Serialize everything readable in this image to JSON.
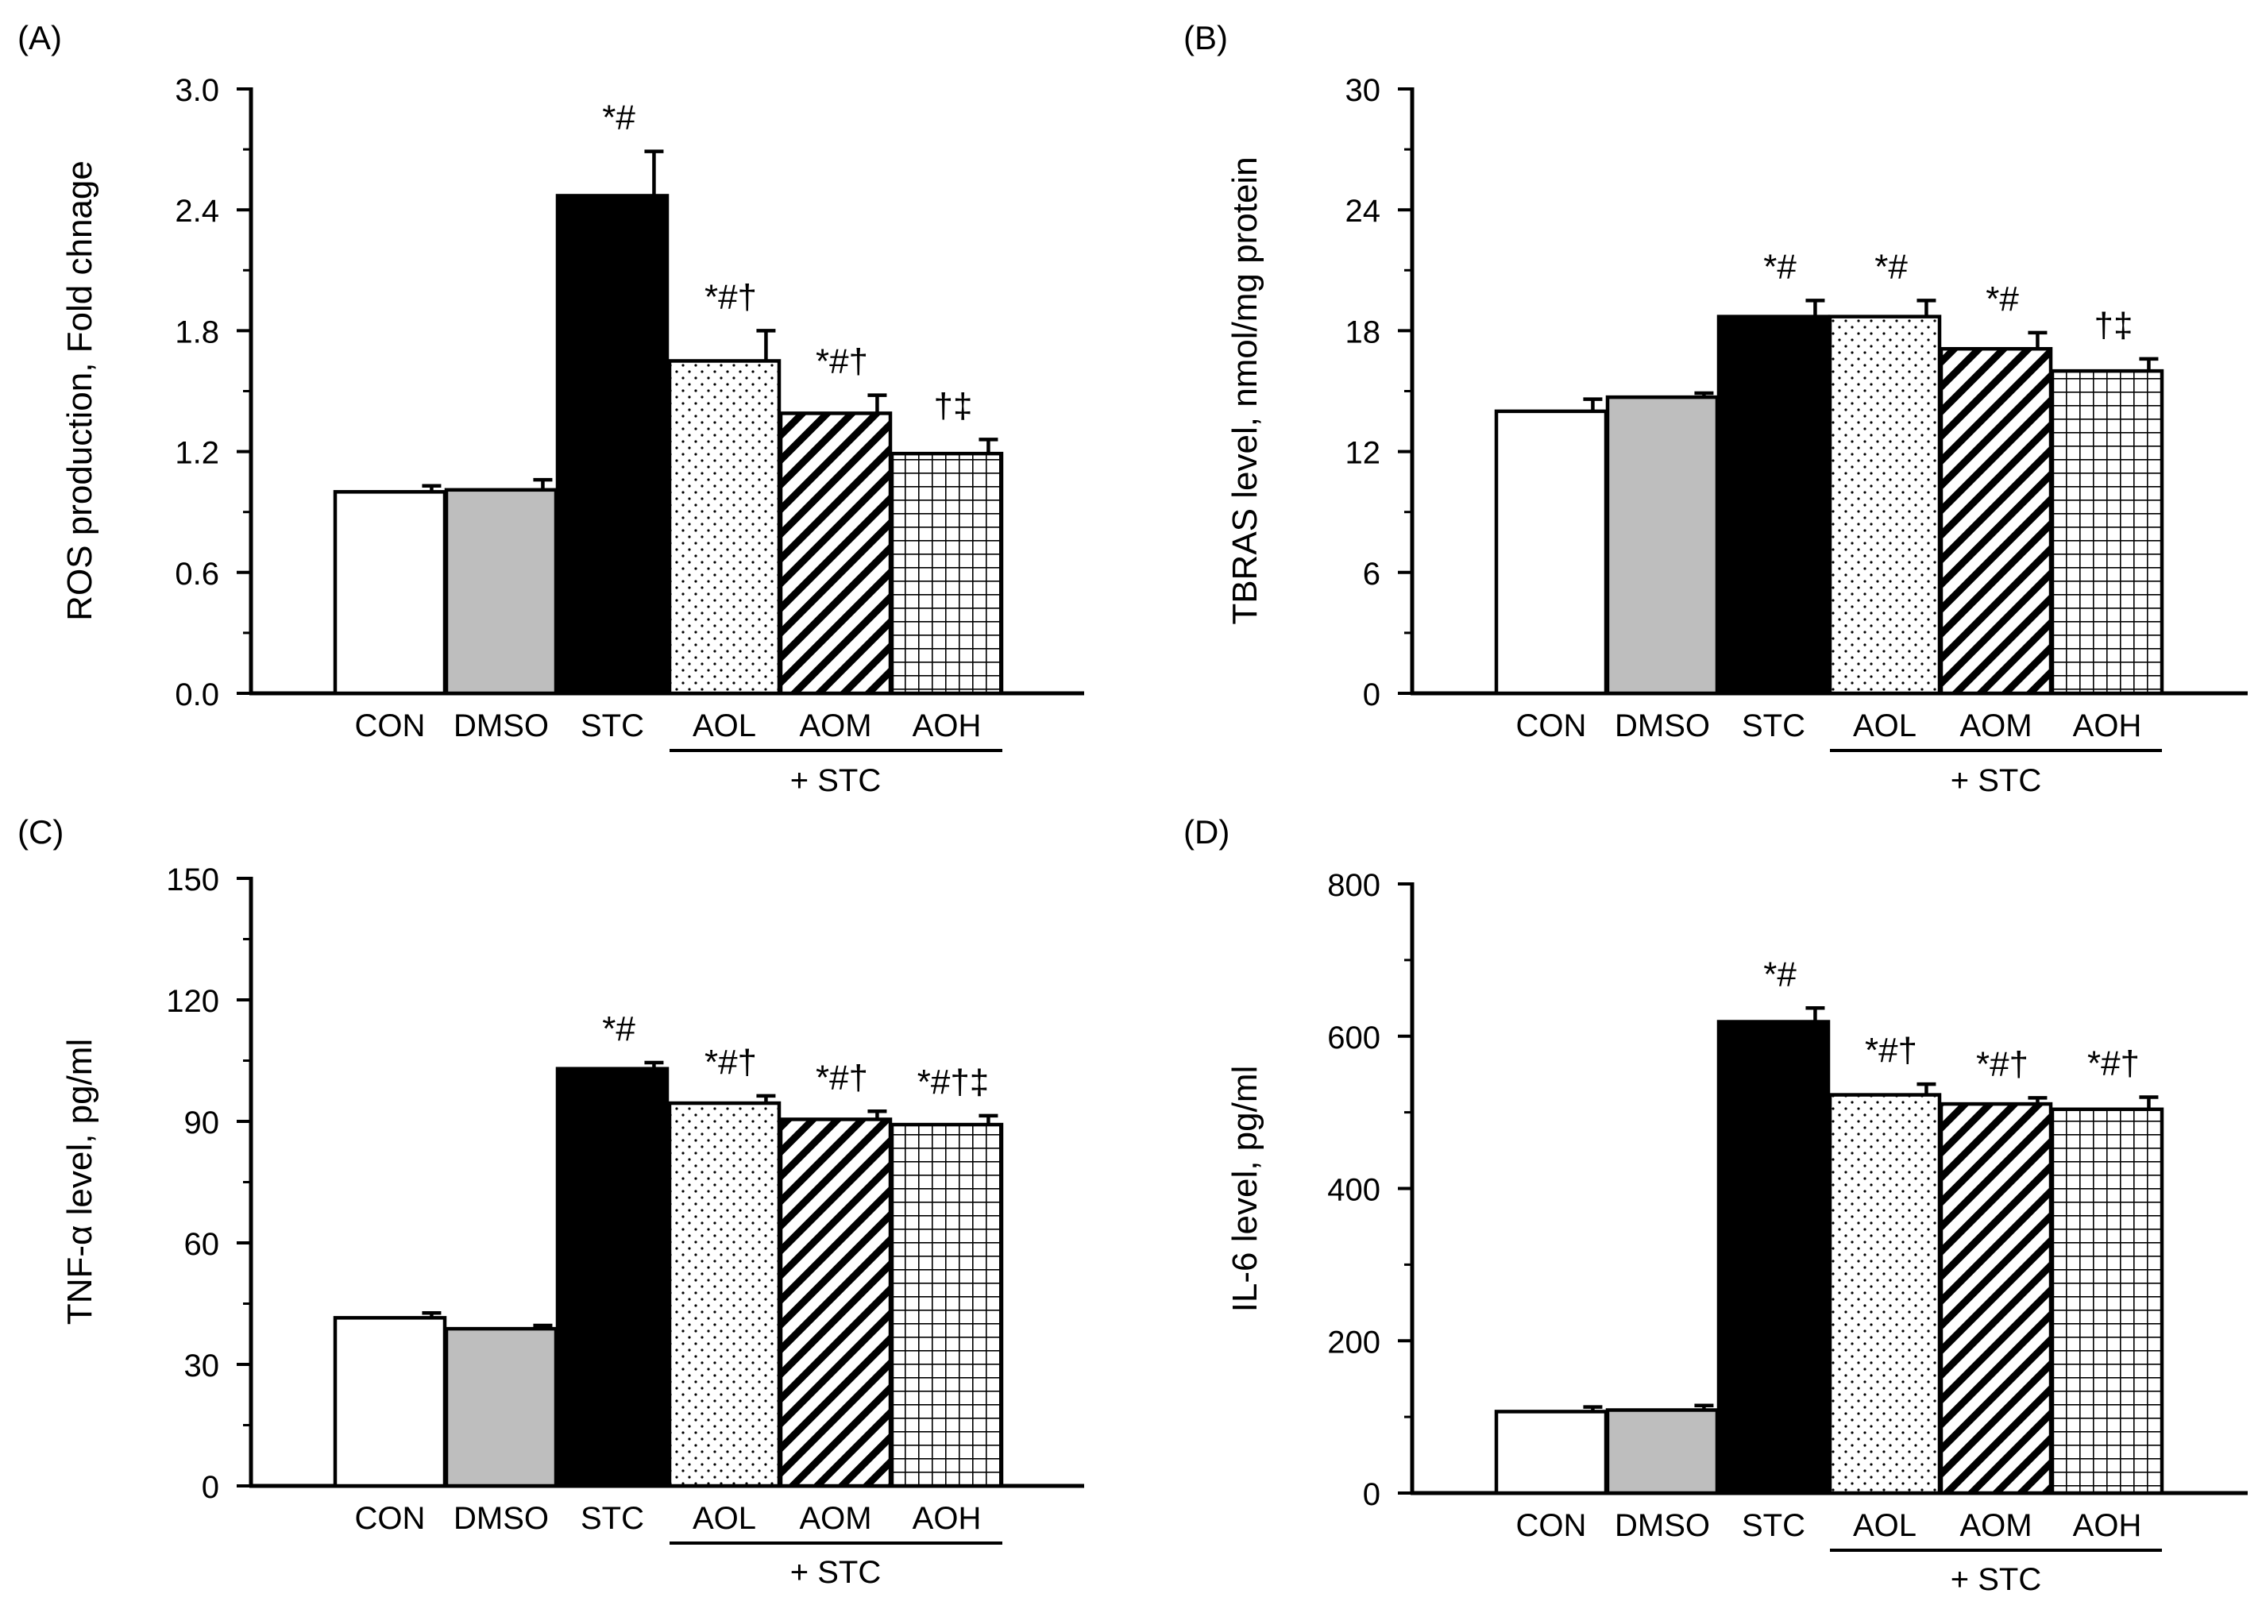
{
  "chart_data": [
    {
      "type": "bar",
      "panel_label": "(A)",
      "ylabel": "ROS production,  Fold chnage",
      "yticks": [
        "0.0",
        "0.6",
        "1.2",
        "1.8",
        "2.4",
        "3.0"
      ],
      "ylim": [
        0,
        3.0
      ],
      "categories": [
        "CON",
        "DMSO",
        "STC",
        "AOL",
        "AOM",
        "AOH"
      ],
      "group_label": "+ STC",
      "values": [
        1.0,
        1.01,
        2.47,
        1.65,
        1.39,
        1.19
      ],
      "errors": [
        0.03,
        0.05,
        0.22,
        0.15,
        0.09,
        0.07
      ],
      "significance": [
        "",
        "",
        "*#",
        "*#†",
        "*#†",
        "†‡"
      ]
    },
    {
      "type": "bar",
      "panel_label": "(B)",
      "ylabel": "TBRAS level, nmol/mg protein",
      "yticks": [
        "0",
        "6",
        "12",
        "18",
        "24",
        "30"
      ],
      "ylim": [
        0,
        30
      ],
      "categories": [
        "CON",
        "DMSO",
        "STC",
        "AOL",
        "AOM",
        "AOH"
      ],
      "group_label": "+ STC",
      "values": [
        14.0,
        14.7,
        18.7,
        18.7,
        17.1,
        16.0
      ],
      "errors": [
        0.6,
        0.2,
        0.8,
        0.8,
        0.8,
        0.6
      ],
      "significance": [
        "",
        "",
        "*#",
        "*#",
        "*#",
        "†‡"
      ]
    },
    {
      "type": "bar",
      "panel_label": "(C)",
      "ylabel": "TNF-α level, pg/ml",
      "yticks": [
        "0",
        "30",
        "60",
        "90",
        "120",
        "150"
      ],
      "ylim": [
        0,
        150
      ],
      "categories": [
        "CON",
        "DMSO",
        "STC",
        "AOL",
        "AOM",
        "AOH"
      ],
      "group_label": "+ STC",
      "values": [
        41.5,
        38.8,
        103.0,
        94.5,
        90.5,
        89.2
      ],
      "errors": [
        1.2,
        0.8,
        1.5,
        1.8,
        2.0,
        2.2
      ],
      "significance": [
        "",
        "",
        "*#",
        "*#†",
        "*#†",
        "*#†‡"
      ]
    },
    {
      "type": "bar",
      "panel_label": "(D)",
      "ylabel": "IL-6 level, pg/ml",
      "yticks": [
        "0",
        "200",
        "400",
        "600",
        "800"
      ],
      "ylim": [
        0,
        800
      ],
      "categories": [
        "CON",
        "DMSO",
        "STC",
        "AOL",
        "AOM",
        "AOH"
      ],
      "group_label": "+ STC",
      "values": [
        107,
        109,
        619,
        523,
        511,
        504
      ],
      "errors": [
        6,
        6,
        18,
        14,
        8,
        16
      ],
      "significance": [
        "",
        "",
        "*#",
        "*#†",
        "*#†",
        "*#†"
      ]
    }
  ]
}
